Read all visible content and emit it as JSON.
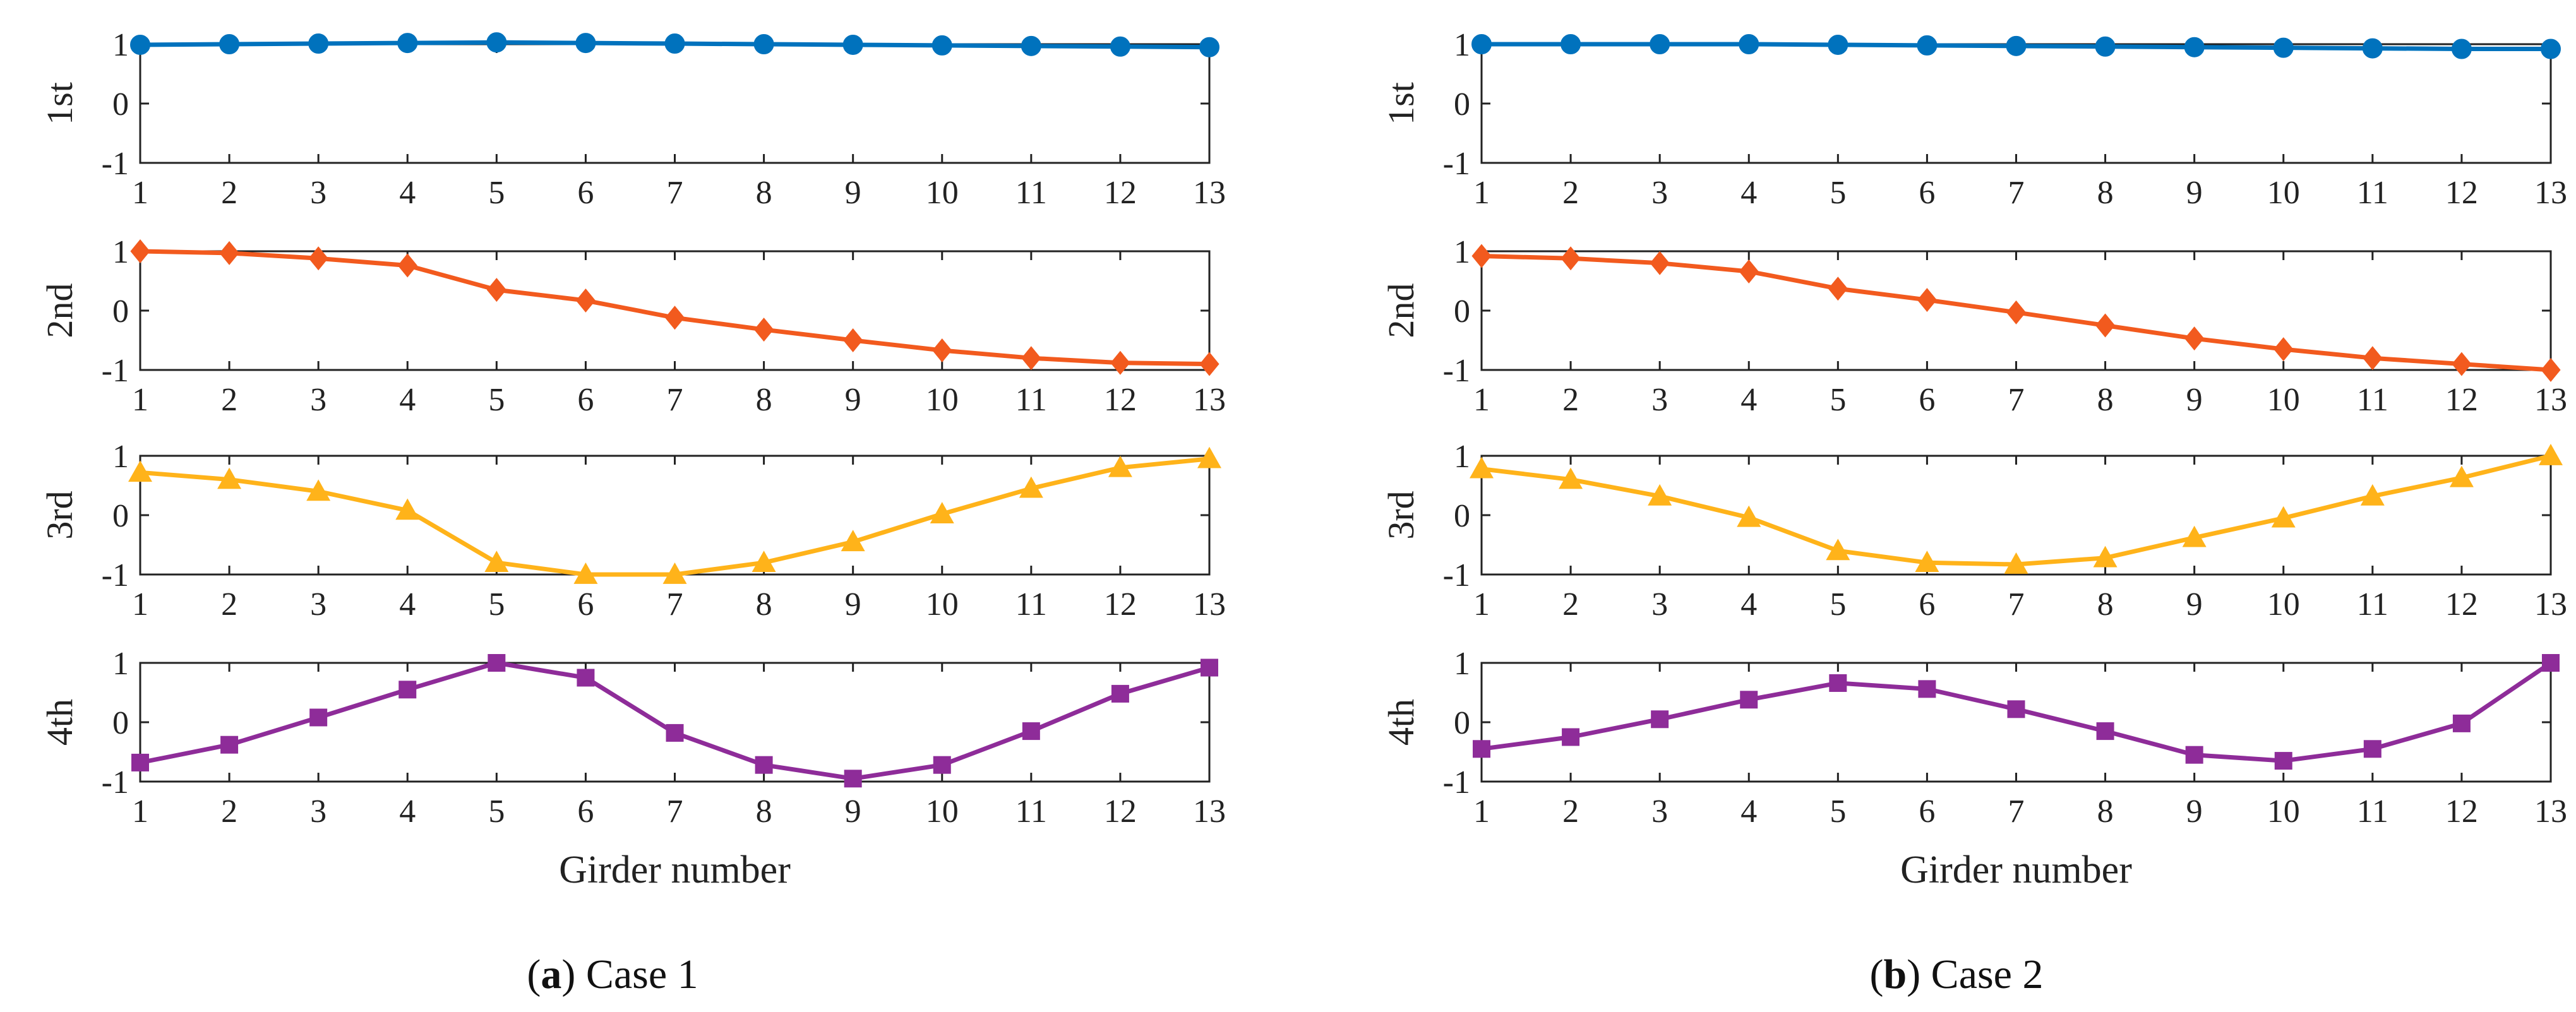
{
  "chart_data": [
    {
      "type": "line",
      "caption_letter": "a",
      "caption_text": ") Case 1",
      "xlabel": "Girder number",
      "x": [
        1,
        2,
        3,
        4,
        5,
        6,
        7,
        8,
        9,
        10,
        11,
        12,
        13
      ],
      "x_tick_labels": [
        "1",
        "2",
        "3",
        "4",
        "5",
        "6",
        "7",
        "8",
        "9",
        "10",
        "11",
        "12",
        "13"
      ],
      "y_tick_labels": [
        "1",
        "0",
        "-1"
      ],
      "ylim": [
        -1,
        1
      ],
      "series": [
        {
          "name": "1st",
          "marker": "circle",
          "color": "#0072BD",
          "values": [
            0.99,
            1.0,
            1.01,
            1.02,
            1.03,
            1.02,
            1.01,
            1.0,
            0.99,
            0.98,
            0.97,
            0.96,
            0.95
          ]
        },
        {
          "name": "2nd",
          "marker": "diamond",
          "color": "#F25A1E",
          "values": [
            1.0,
            0.97,
            0.88,
            0.76,
            0.35,
            0.17,
            -0.12,
            -0.32,
            -0.5,
            -0.67,
            -0.8,
            -0.88,
            -0.9
          ]
        },
        {
          "name": "3rd",
          "marker": "triangle",
          "color": "#FFB31A",
          "values": [
            0.72,
            0.6,
            0.4,
            0.08,
            -0.8,
            -1.0,
            -1.0,
            -0.8,
            -0.45,
            0.02,
            0.45,
            0.8,
            0.95
          ]
        },
        {
          "name": "4th",
          "marker": "square",
          "color": "#8E2C99",
          "values": [
            -0.68,
            -0.38,
            0.08,
            0.55,
            1.0,
            0.75,
            -0.18,
            -0.72,
            -0.95,
            -0.72,
            -0.15,
            0.48,
            0.92
          ]
        }
      ]
    },
    {
      "type": "line",
      "caption_letter": "b",
      "caption_text": ") Case 2",
      "xlabel": "Girder number",
      "x": [
        1,
        2,
        3,
        4,
        5,
        6,
        7,
        8,
        9,
        10,
        11,
        12,
        13
      ],
      "x_tick_labels": [
        "1",
        "2",
        "3",
        "4",
        "5",
        "6",
        "7",
        "8",
        "9",
        "10",
        "11",
        "12",
        "13"
      ],
      "y_tick_labels": [
        "1",
        "0",
        "-1"
      ],
      "ylim": [
        -1,
        1
      ],
      "series": [
        {
          "name": "1st",
          "marker": "circle",
          "color": "#0072BD",
          "values": [
            1.0,
            1.0,
            1.0,
            1.0,
            0.99,
            0.98,
            0.97,
            0.96,
            0.95,
            0.94,
            0.93,
            0.92,
            0.92
          ]
        },
        {
          "name": "2nd",
          "marker": "diamond",
          "color": "#F25A1E",
          "values": [
            0.92,
            0.88,
            0.8,
            0.66,
            0.37,
            0.18,
            -0.03,
            -0.25,
            -0.47,
            -0.65,
            -0.8,
            -0.9,
            -1.0
          ]
        },
        {
          "name": "3rd",
          "marker": "triangle",
          "color": "#FFB31A",
          "values": [
            0.78,
            0.6,
            0.32,
            -0.04,
            -0.6,
            -0.8,
            -0.83,
            -0.72,
            -0.38,
            -0.05,
            0.32,
            0.63,
            1.0
          ]
        },
        {
          "name": "4th",
          "marker": "square",
          "color": "#8E2C99",
          "values": [
            -0.45,
            -0.25,
            0.05,
            0.38,
            0.66,
            0.56,
            0.22,
            -0.15,
            -0.55,
            -0.65,
            -0.45,
            -0.02,
            1.0
          ]
        }
      ]
    }
  ]
}
